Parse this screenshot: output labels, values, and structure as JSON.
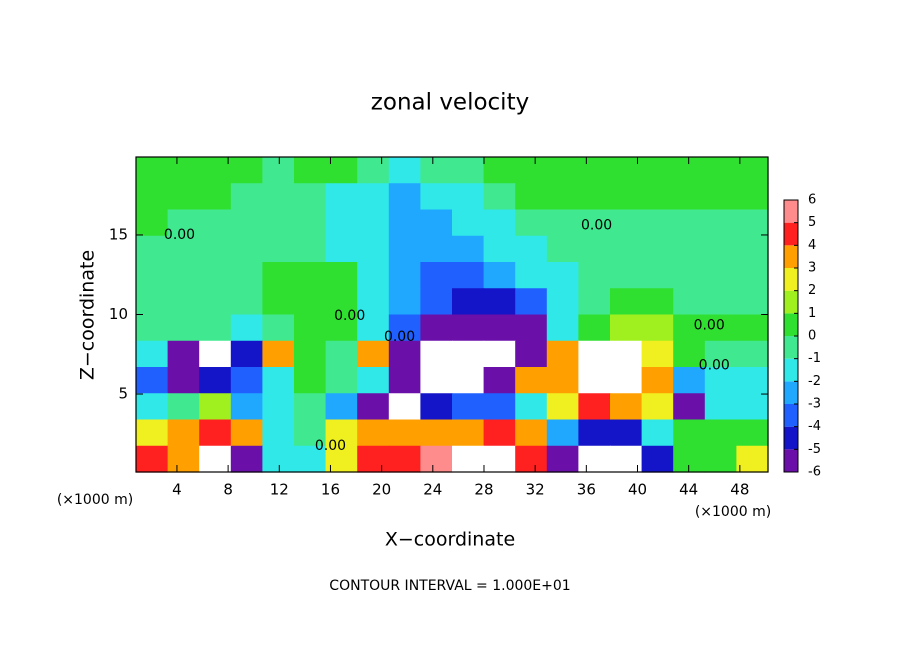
{
  "chart_data": {
    "type": "heatmap",
    "title": "zonal velocity",
    "xlabel": "X−coordinate",
    "ylabel": "Z−coordinate",
    "x_unit": "(×1000 m)",
    "x_unit_right": "(×1000 m)",
    "footer": "CONTOUR INTERVAL = 1.000E+01",
    "xlim": [
      0.8,
      50.2
    ],
    "ylim": [
      0.1,
      19.9
    ],
    "xticks": [
      4,
      8,
      12,
      16,
      20,
      24,
      28,
      32,
      36,
      40,
      44,
      48
    ],
    "yticks": [
      5,
      10,
      15
    ],
    "z": [
      [
        0.5,
        0.5,
        0.5,
        0.5,
        -0.5,
        0.5,
        0.5,
        -0.5,
        -1,
        -0.5,
        -0.5,
        0.5,
        0.5,
        0.5,
        0.5,
        1,
        1,
        1,
        1,
        1
      ],
      [
        0.5,
        0.5,
        0.5,
        -0.5,
        -0.5,
        -0.5,
        -1,
        -1,
        -2,
        -1.5,
        -1,
        -0.5,
        0.5,
        0.5,
        0.5,
        0.5,
        0.5,
        0.5,
        0.5,
        0.5
      ],
      [
        0.5,
        -0.5,
        -0.5,
        -0.5,
        -0.5,
        -0.5,
        -1,
        -1.5,
        -2,
        -2,
        -1.5,
        -1,
        -0.5,
        -0.5,
        -0.5,
        -0.5,
        -0.5,
        -0.5,
        -0.5,
        -0.5
      ],
      [
        -0.5,
        -0.5,
        -0.5,
        -0.5,
        -0.5,
        -0.5,
        -1,
        -1.5,
        -2,
        -2.5,
        -2,
        -1.5,
        -1,
        -0.5,
        -0.5,
        -0.5,
        -0.5,
        -0.5,
        -0.5,
        -0.5
      ],
      [
        -0.5,
        -0.5,
        -0.5,
        -0.5,
        0.5,
        0.5,
        0.5,
        -1,
        -2,
        -3,
        -3,
        -2.5,
        -1.5,
        -1,
        -0.5,
        -0.5,
        -0.5,
        -0.5,
        -0.5,
        -0.5
      ],
      [
        -0.5,
        -0.5,
        -0.5,
        -0.5,
        0.5,
        0.5,
        0.5,
        -1,
        -2.5,
        -3.5,
        -4,
        -4.5,
        -3,
        -1,
        -0.5,
        0.5,
        0.5,
        -0.5,
        -0.5,
        -0.5
      ],
      [
        -0.5,
        -0.5,
        -0.5,
        -1,
        -0.5,
        0.5,
        0.5,
        -1,
        -3,
        -5,
        -5.5,
        -5.5,
        -5,
        -1,
        0.5,
        1.5,
        1.5,
        1,
        0.5,
        0.5
      ],
      [
        -1,
        -5,
        7,
        -4,
        4,
        0.5,
        -0.5,
        4,
        -5,
        7,
        7,
        7,
        -5,
        4,
        7,
        7,
        3,
        0.5,
        -0.5,
        -0.5
      ],
      [
        -3,
        -5,
        -4,
        -3,
        -1,
        1,
        -0.5,
        -1,
        -5,
        7,
        7,
        -5,
        4,
        4,
        7,
        7,
        4,
        -2,
        -1,
        -1
      ],
      [
        -1,
        -0.5,
        2,
        -2,
        -1,
        -0.5,
        -2,
        -5,
        7,
        -4,
        -3,
        -3,
        -1,
        3,
        5,
        4,
        3,
        -5,
        -1,
        -1
      ],
      [
        3,
        4,
        5,
        4,
        -1,
        -0.5,
        3,
        4,
        4,
        4,
        4,
        5,
        4,
        -2,
        -4,
        -4,
        -1,
        0.5,
        0.5,
        1
      ],
      [
        5,
        4,
        7,
        -5,
        -1,
        -1,
        3,
        5,
        5,
        6,
        7,
        7,
        5,
        -5,
        7,
        7,
        -4,
        0.5,
        1,
        3
      ]
    ],
    "colorbar": {
      "ticks": [
        -6,
        -5,
        -4,
        -3,
        -2,
        -1,
        0,
        1,
        2,
        3,
        4,
        5,
        6
      ],
      "colors": [
        "#6a10a8",
        "#1414c8",
        "#2060ff",
        "#20a8ff",
        "#30e8e8",
        "#40e890",
        "#30e030",
        "#a0f020",
        "#f0f020",
        "#ffa000",
        "#ff2020",
        "#ff8c8c"
      ],
      "over_color": "#ffffff"
    },
    "contour_labels": [
      {
        "text": "0.00",
        "x": 4.2,
        "y": 15
      },
      {
        "text": "0.00",
        "x": 36.8,
        "y": 15.6
      },
      {
        "text": "0.00",
        "x": 17.5,
        "y": 9.9
      },
      {
        "text": "0.00",
        "x": 21.4,
        "y": 8.6
      },
      {
        "text": "0.00",
        "x": 45.6,
        "y": 9.3
      },
      {
        "text": "0.00",
        "x": 46,
        "y": 6.8
      },
      {
        "text": "0.00",
        "x": 16,
        "y": 1.75
      }
    ]
  }
}
